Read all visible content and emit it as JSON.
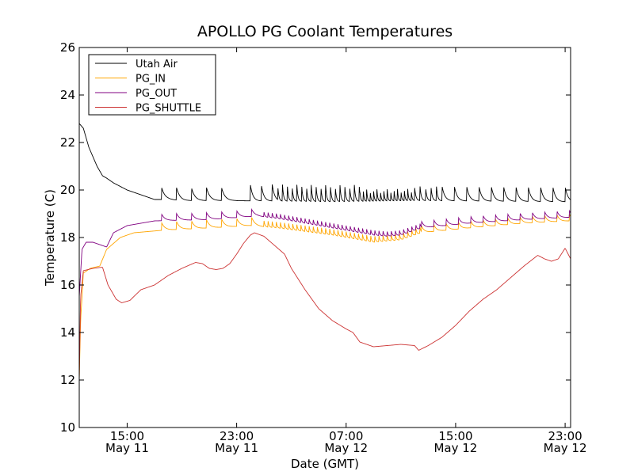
{
  "chart_data": {
    "type": "line",
    "title": "APOLLO PG Coolant Temperatures",
    "xlabel": "Date (GMT)",
    "ylabel": "Temperature (C)",
    "x_unit": "hours since May 11 00:00 GMT",
    "xlim": [
      11.5,
      47.4
    ],
    "ylim": [
      10,
      26
    ],
    "yticks": [
      10,
      12,
      14,
      16,
      18,
      20,
      22,
      24,
      26
    ],
    "xticks": [
      {
        "value": 15,
        "time": "15:00",
        "date": "May 11"
      },
      {
        "value": 23,
        "time": "23:00",
        "date": "May 11"
      },
      {
        "value": 31,
        "time": "07:00",
        "date": "May 12"
      },
      {
        "value": 39,
        "time": "15:00",
        "date": "May 12"
      },
      {
        "value": 47,
        "time": "23:00",
        "date": "May 12"
      }
    ],
    "legend": {
      "position": "top-left"
    },
    "series": [
      {
        "name": "Utah Air",
        "color": "#000000",
        "points": [
          [
            11.5,
            22.8
          ],
          [
            11.8,
            22.6
          ],
          [
            12.2,
            21.8
          ],
          [
            12.8,
            21.0
          ],
          [
            13.2,
            20.6
          ],
          [
            13.5,
            20.5
          ],
          [
            14.0,
            20.3
          ],
          [
            15.0,
            20.0
          ],
          [
            16.0,
            19.8
          ],
          [
            17.0,
            19.6
          ],
          [
            18.0,
            19.6
          ],
          [
            19.0,
            19.55
          ],
          [
            20.0,
            19.55
          ],
          [
            23.0,
            19.55
          ],
          [
            30.0,
            19.5
          ],
          [
            36.0,
            19.55
          ],
          [
            47.4,
            19.5
          ]
        ],
        "sawtooth": [
          {
            "start": 17.5,
            "end": 23.0,
            "period": 1.1,
            "amp": 0.55
          },
          {
            "start": 24.0,
            "end": 26.0,
            "period": 0.8,
            "amp": 0.7
          },
          {
            "start": 26.0,
            "end": 32.0,
            "period": 0.35,
            "amp": 0.7
          },
          {
            "start": 32.0,
            "end": 36.0,
            "period": 0.25,
            "amp": 0.5
          },
          {
            "start": 36.0,
            "end": 38.0,
            "period": 0.4,
            "amp": 0.6
          },
          {
            "start": 38.0,
            "end": 47.4,
            "period": 0.9,
            "amp": 0.65
          }
        ]
      },
      {
        "name": "PG_IN",
        "color": "#ffa500",
        "points": [
          [
            11.5,
            12.0
          ],
          [
            11.6,
            14.5
          ],
          [
            11.8,
            16.5
          ],
          [
            12.3,
            16.7
          ],
          [
            13.0,
            16.8
          ],
          [
            13.5,
            17.5
          ],
          [
            14.5,
            18.0
          ],
          [
            15.5,
            18.2
          ],
          [
            17.5,
            18.3
          ],
          [
            21.0,
            18.4
          ],
          [
            24.0,
            18.5
          ],
          [
            26.0,
            18.4
          ],
          [
            30.0,
            18.1
          ],
          [
            33.0,
            17.8
          ],
          [
            35.0,
            17.9
          ],
          [
            36.5,
            18.2
          ],
          [
            40.0,
            18.4
          ],
          [
            44.0,
            18.6
          ],
          [
            47.4,
            18.7
          ]
        ],
        "sawtooth": [
          {
            "start": 17.5,
            "end": 25.0,
            "period": 1.1,
            "amp": 0.35
          },
          {
            "start": 25.0,
            "end": 36.5,
            "period": 0.3,
            "amp": 0.25
          },
          {
            "start": 36.5,
            "end": 47.4,
            "period": 0.9,
            "amp": 0.3
          }
        ]
      },
      {
        "name": "PG_OUT",
        "color": "#800080",
        "points": [
          [
            11.5,
            15.5
          ],
          [
            11.7,
            17.5
          ],
          [
            12.0,
            17.8
          ],
          [
            12.5,
            17.8
          ],
          [
            13.5,
            17.6
          ],
          [
            14.0,
            18.2
          ],
          [
            15.0,
            18.5
          ],
          [
            17.0,
            18.7
          ],
          [
            21.0,
            18.75
          ],
          [
            24.5,
            18.9
          ],
          [
            26.0,
            18.8
          ],
          [
            30.0,
            18.4
          ],
          [
            33.0,
            18.1
          ],
          [
            34.0,
            18.05
          ],
          [
            35.0,
            18.1
          ],
          [
            36.5,
            18.4
          ],
          [
            40.0,
            18.6
          ],
          [
            44.0,
            18.75
          ],
          [
            47.4,
            18.85
          ]
        ],
        "sawtooth": [
          {
            "start": 17.5,
            "end": 25.0,
            "period": 1.1,
            "amp": 0.3
          },
          {
            "start": 25.0,
            "end": 36.5,
            "period": 0.3,
            "amp": 0.2
          },
          {
            "start": 36.5,
            "end": 47.4,
            "period": 0.9,
            "amp": 0.3
          }
        ]
      },
      {
        "name": "PG_SHUTTLE",
        "color": "#cc3333",
        "points": [
          [
            11.5,
            12.0
          ],
          [
            11.6,
            15.5
          ],
          [
            11.8,
            16.6
          ],
          [
            12.5,
            16.7
          ],
          [
            13.2,
            16.75
          ],
          [
            13.6,
            16.0
          ],
          [
            14.2,
            15.4
          ],
          [
            14.6,
            15.25
          ],
          [
            15.2,
            15.35
          ],
          [
            16.0,
            15.8
          ],
          [
            17.0,
            16.0
          ],
          [
            18.0,
            16.4
          ],
          [
            19.0,
            16.7
          ],
          [
            20.0,
            16.95
          ],
          [
            20.5,
            16.9
          ],
          [
            21.0,
            16.7
          ],
          [
            21.5,
            16.65
          ],
          [
            22.0,
            16.7
          ],
          [
            22.5,
            16.9
          ],
          [
            23.0,
            17.3
          ],
          [
            23.5,
            17.75
          ],
          [
            24.0,
            18.1
          ],
          [
            24.3,
            18.2
          ],
          [
            25.0,
            18.05
          ],
          [
            25.5,
            17.8
          ],
          [
            26.5,
            17.3
          ],
          [
            27.0,
            16.7
          ],
          [
            28.0,
            15.8
          ],
          [
            29.0,
            15.0
          ],
          [
            30.0,
            14.5
          ],
          [
            31.0,
            14.15
          ],
          [
            31.5,
            14.0
          ],
          [
            32.0,
            13.6
          ],
          [
            33.0,
            13.4
          ],
          [
            34.0,
            13.45
          ],
          [
            35.0,
            13.5
          ],
          [
            36.0,
            13.45
          ],
          [
            36.3,
            13.25
          ],
          [
            37.0,
            13.45
          ],
          [
            38.0,
            13.8
          ],
          [
            39.0,
            14.3
          ],
          [
            40.0,
            14.9
          ],
          [
            41.0,
            15.4
          ],
          [
            42.0,
            15.8
          ],
          [
            43.0,
            16.3
          ],
          [
            44.0,
            16.8
          ],
          [
            45.0,
            17.25
          ],
          [
            45.5,
            17.1
          ],
          [
            46.0,
            17.0
          ],
          [
            46.5,
            17.1
          ],
          [
            47.0,
            17.55
          ],
          [
            47.4,
            17.1
          ]
        ],
        "sawtooth": []
      }
    ]
  }
}
